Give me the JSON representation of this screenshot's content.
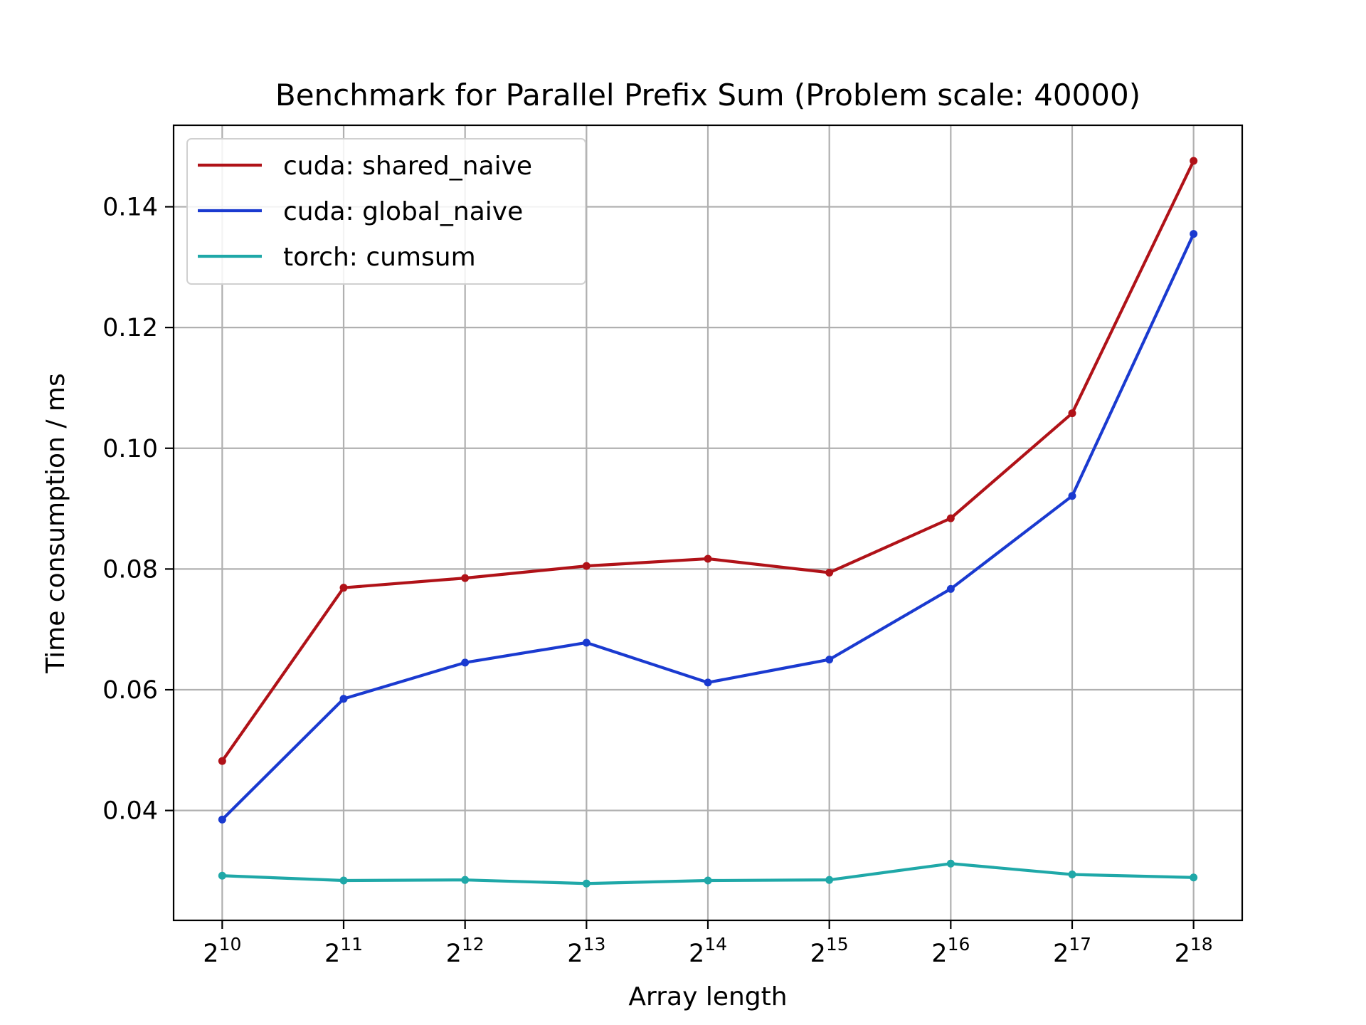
{
  "chart_data": {
    "type": "line",
    "title": "Benchmark for Parallel Prefix Sum (Problem scale: 40000)",
    "xlabel": "Array length",
    "ylabel": "Time consumption / ms",
    "x": [
      1024,
      2048,
      4096,
      8192,
      16384,
      32768,
      65536,
      131072,
      262144
    ],
    "x_tick_base": "2",
    "x_tick_exponents": [
      "10",
      "11",
      "12",
      "13",
      "14",
      "15",
      "16",
      "17",
      "18"
    ],
    "x_scale": "log2",
    "ylim": [
      0.0218,
      0.1535
    ],
    "y_ticks": [
      0.04,
      0.06,
      0.08,
      0.1,
      0.12,
      0.14
    ],
    "y_tick_labels": [
      "0.04",
      "0.06",
      "0.08",
      "0.10",
      "0.12",
      "0.14"
    ],
    "grid": true,
    "legend_position": "upper-left",
    "series": [
      {
        "name": "cuda: shared_naive",
        "color": "#b01218",
        "values": [
          0.0482,
          0.0769,
          0.0785,
          0.0805,
          0.0817,
          0.0794,
          0.0884,
          0.1058,
          0.1476
        ]
      },
      {
        "name": "cuda: global_naive",
        "color": "#1a3ad0",
        "values": [
          0.0385,
          0.0585,
          0.0645,
          0.0678,
          0.0612,
          0.065,
          0.0767,
          0.0921,
          0.1355
        ]
      },
      {
        "name": "torch: cumsum",
        "color": "#1fa8a8",
        "values": [
          0.0292,
          0.0284,
          0.0285,
          0.0279,
          0.0284,
          0.0285,
          0.0312,
          0.0294,
          0.0289
        ]
      }
    ]
  }
}
